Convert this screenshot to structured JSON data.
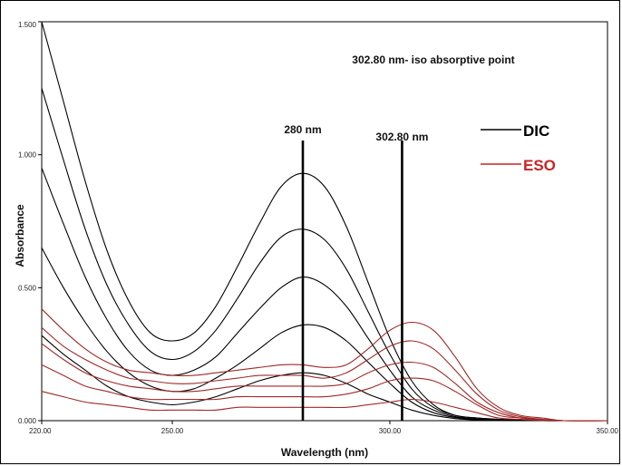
{
  "chart_data": {
    "type": "line",
    "title": "",
    "xlabel": "Wavelength (nm)",
    "ylabel": "Absorbance",
    "xlim": [
      220,
      350
    ],
    "ylim": [
      0,
      1.5
    ],
    "x_ticks": [
      220,
      250,
      300,
      350
    ],
    "x_tick_labels": [
      "220.00",
      "250.00",
      "300.00",
      "350.00"
    ],
    "y_ticks": [
      0,
      0.5,
      1.0,
      1.5
    ],
    "y_tick_labels": [
      "0.000",
      "0.500",
      "1.000",
      "1.500"
    ],
    "grid": false,
    "legend_position": "top-right",
    "legend": [
      {
        "label": "DIC",
        "color": "#000000"
      },
      {
        "label": "ESO",
        "color": "#cc2222"
      }
    ],
    "annotation_text": "302.80 nm- iso absorptive point",
    "vlines": [
      {
        "x": 280,
        "label": "280 nm"
      },
      {
        "x": 302.8,
        "label": "302.80 nm"
      }
    ],
    "series_groups": [
      {
        "group": "DIC",
        "color": "#000000",
        "curves": [
          {
            "x": [
              220,
              225,
              230,
              235,
              240,
              245,
              250,
              255,
              260,
              265,
              270,
              275,
              280,
              285,
              290,
              295,
              300,
              305,
              310,
              315,
              320,
              325,
              330,
              335,
              340,
              350
            ],
            "y": [
              1.5,
              1.2,
              0.9,
              0.64,
              0.45,
              0.33,
              0.3,
              0.33,
              0.43,
              0.58,
              0.74,
              0.88,
              0.93,
              0.88,
              0.73,
              0.52,
              0.31,
              0.15,
              0.06,
              0.02,
              0.01,
              0.005,
              0.002,
              0.0,
              0.0,
              0.0
            ]
          },
          {
            "x": [
              220,
              225,
              230,
              235,
              240,
              245,
              250,
              255,
              260,
              265,
              270,
              275,
              280,
              285,
              290,
              295,
              300,
              305,
              310,
              315,
              320,
              325,
              330,
              335,
              340,
              350
            ],
            "y": [
              1.25,
              0.98,
              0.72,
              0.51,
              0.36,
              0.26,
              0.23,
              0.26,
              0.34,
              0.46,
              0.59,
              0.69,
              0.72,
              0.68,
              0.57,
              0.41,
              0.25,
              0.12,
              0.05,
              0.02,
              0.01,
              0.005,
              0.002,
              0.0,
              0.0,
              0.0
            ]
          },
          {
            "x": [
              220,
              225,
              230,
              235,
              240,
              245,
              250,
              255,
              260,
              265,
              270,
              275,
              280,
              285,
              290,
              295,
              300,
              305,
              310,
              315,
              320,
              325,
              330,
              335,
              340,
              350
            ],
            "y": [
              0.95,
              0.74,
              0.54,
              0.38,
              0.26,
              0.19,
              0.17,
              0.19,
              0.24,
              0.33,
              0.42,
              0.5,
              0.54,
              0.51,
              0.43,
              0.31,
              0.19,
              0.09,
              0.04,
              0.015,
              0.006,
              0.003,
              0.001,
              0.0,
              0.0,
              0.0
            ]
          },
          {
            "x": [
              220,
              225,
              230,
              235,
              240,
              245,
              250,
              255,
              260,
              265,
              270,
              275,
              280,
              285,
              290,
              295,
              300,
              305,
              310,
              315,
              320,
              325,
              330,
              335,
              340,
              350
            ],
            "y": [
              0.65,
              0.5,
              0.37,
              0.26,
              0.18,
              0.13,
              0.11,
              0.12,
              0.16,
              0.21,
              0.27,
              0.33,
              0.36,
              0.35,
              0.3,
              0.22,
              0.14,
              0.07,
              0.03,
              0.012,
              0.005,
              0.002,
              0.001,
              0.0,
              0.0,
              0.0
            ]
          },
          {
            "x": [
              220,
              225,
              230,
              235,
              240,
              245,
              250,
              255,
              260,
              265,
              270,
              275,
              280,
              285,
              290,
              295,
              300,
              305,
              310,
              315,
              320,
              325,
              330,
              335,
              340,
              350
            ],
            "y": [
              0.32,
              0.25,
              0.19,
              0.13,
              0.09,
              0.07,
              0.06,
              0.07,
              0.09,
              0.12,
              0.15,
              0.17,
              0.18,
              0.17,
              0.14,
              0.1,
              0.07,
              0.04,
              0.02,
              0.008,
              0.003,
              0.001,
              0.0,
              0.0,
              0.0,
              0.0
            ]
          }
        ]
      },
      {
        "group": "ESO",
        "color": "#a02828",
        "curves": [
          {
            "x": [
              220,
              225,
              230,
              235,
              240,
              245,
              250,
              255,
              260,
              265,
              270,
              275,
              280,
              285,
              290,
              295,
              300,
              305,
              310,
              315,
              320,
              325,
              330,
              335,
              340,
              350
            ],
            "y": [
              0.42,
              0.34,
              0.27,
              0.22,
              0.19,
              0.18,
              0.17,
              0.17,
              0.18,
              0.19,
              0.2,
              0.21,
              0.21,
              0.2,
              0.21,
              0.27,
              0.34,
              0.37,
              0.34,
              0.24,
              0.12,
              0.05,
              0.02,
              0.01,
              0.0,
              0.0
            ]
          },
          {
            "x": [
              220,
              225,
              230,
              235,
              240,
              245,
              250,
              255,
              260,
              265,
              270,
              275,
              280,
              285,
              290,
              295,
              300,
              305,
              310,
              315,
              320,
              325,
              330,
              335,
              340,
              350
            ],
            "y": [
              0.35,
              0.28,
              0.23,
              0.19,
              0.16,
              0.15,
              0.14,
              0.14,
              0.15,
              0.16,
              0.17,
              0.17,
              0.17,
              0.16,
              0.18,
              0.23,
              0.28,
              0.3,
              0.27,
              0.19,
              0.1,
              0.04,
              0.015,
              0.005,
              0.0,
              0.0
            ]
          },
          {
            "x": [
              220,
              225,
              230,
              235,
              240,
              245,
              250,
              255,
              260,
              265,
              270,
              275,
              280,
              285,
              290,
              295,
              300,
              305,
              310,
              315,
              320,
              325,
              330,
              335,
              340,
              350
            ],
            "y": [
              0.29,
              0.23,
              0.18,
              0.15,
              0.13,
              0.12,
              0.11,
              0.11,
              0.12,
              0.13,
              0.13,
              0.13,
              0.13,
              0.13,
              0.14,
              0.18,
              0.21,
              0.22,
              0.2,
              0.14,
              0.07,
              0.03,
              0.01,
              0.004,
              0.0,
              0.0
            ]
          },
          {
            "x": [
              220,
              225,
              230,
              235,
              240,
              245,
              250,
              255,
              260,
              265,
              270,
              275,
              280,
              285,
              290,
              295,
              300,
              305,
              310,
              315,
              320,
              325,
              330,
              335,
              340,
              350
            ],
            "y": [
              0.21,
              0.17,
              0.13,
              0.11,
              0.09,
              0.08,
              0.08,
              0.08,
              0.08,
              0.09,
              0.09,
              0.09,
              0.09,
              0.09,
              0.1,
              0.12,
              0.15,
              0.16,
              0.15,
              0.11,
              0.06,
              0.02,
              0.01,
              0.003,
              0.0,
              0.0
            ]
          },
          {
            "x": [
              220,
              225,
              230,
              235,
              240,
              245,
              250,
              255,
              260,
              265,
              270,
              275,
              280,
              285,
              290,
              295,
              300,
              305,
              310,
              315,
              320,
              325,
              330,
              335,
              340,
              350
            ],
            "y": [
              0.11,
              0.09,
              0.07,
              0.06,
              0.05,
              0.04,
              0.04,
              0.04,
              0.04,
              0.05,
              0.05,
              0.05,
              0.05,
              0.05,
              0.05,
              0.06,
              0.07,
              0.08,
              0.07,
              0.05,
              0.03,
              0.01,
              0.005,
              0.001,
              0.0,
              0.0
            ]
          }
        ]
      }
    ]
  }
}
